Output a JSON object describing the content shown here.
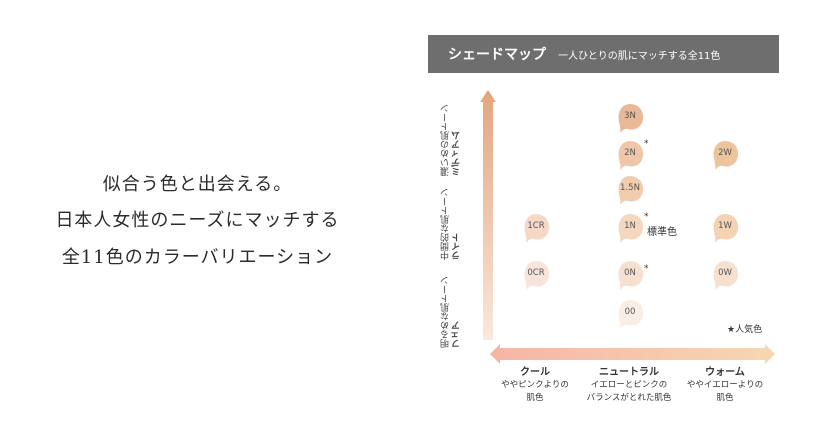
{
  "tagline": {
    "line1": "似合う色と出会える。",
    "line2": "日本人女性のニーズにマッチする",
    "line3": "全11色のカラーバリエーション"
  },
  "header": {
    "title": "シェードマップ",
    "subtitle": "一人ひとりの肌にマッチする全11色"
  },
  "vertical_axis": {
    "levels": [
      {
        "desc": "濃いめの肌トーン",
        "name": "ミディアム"
      },
      {
        "desc": "中間的な肌トーン",
        "name": "ライト"
      },
      {
        "desc": "明るめな肌トーン",
        "name": "フェア"
      }
    ]
  },
  "horizontal_axis": {
    "columns": [
      {
        "name": "クール",
        "desc1": "ややピンクよりの",
        "desc2": "肌色"
      },
      {
        "name": "ニュートラル",
        "desc1": "イエローとピンクの",
        "desc2": "バランスがとれた肌色"
      },
      {
        "name": "ウォーム",
        "desc1": "ややイエローよりの",
        "desc2": "肌色"
      }
    ]
  },
  "shades": [
    {
      "code": "3N",
      "color": "#e9b896",
      "popular": false
    },
    {
      "code": "2N",
      "color": "#efc7a8",
      "popular": true
    },
    {
      "code": "1.5N",
      "color": "#f1cdb0",
      "popular": false
    },
    {
      "code": "1N",
      "color": "#f4d7bf",
      "popular": true
    },
    {
      "code": "0N",
      "color": "#f6e0d0",
      "popular": true
    },
    {
      "code": "00",
      "color": "#f9eee6",
      "popular": false
    },
    {
      "code": "1CR",
      "color": "#f6d8c9",
      "popular": false
    },
    {
      "code": "0CR",
      "color": "#f8e4da",
      "popular": false
    },
    {
      "code": "2W",
      "color": "#eec49d",
      "popular": false
    },
    {
      "code": "1W",
      "color": "#f2d3b3",
      "popular": false
    },
    {
      "code": "0W",
      "color": "#f6e1cf",
      "popular": false
    }
  ],
  "star_symbol": "*",
  "standard_label": "標準色",
  "legend": "★人気色",
  "colors": {
    "header_bg": "#6e6e6e",
    "vertical_axis_top": "#e2a57c",
    "vertical_axis_bottom": "#fae8dc",
    "horizontal_axis_left": "#f6b5a6",
    "horizontal_axis_right": "#f6d7b2"
  }
}
